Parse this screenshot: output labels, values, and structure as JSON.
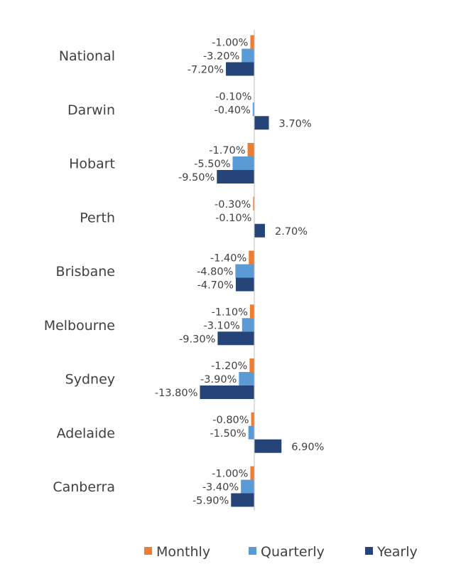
{
  "chart_data": {
    "type": "bar",
    "orientation": "horizontal",
    "title": "",
    "xlabel": "",
    "ylabel": "",
    "grid": false,
    "legend_position": "bottom",
    "categories": [
      "National",
      "Darwin",
      "Hobart",
      "Perth",
      "Brisbane",
      "Melbourne",
      "Sydney",
      "Adelaide",
      "Canberra"
    ],
    "series": [
      {
        "name": "Monthly",
        "color": "#ED7D31",
        "values": [
          -1.0,
          -0.1,
          -1.7,
          -0.3,
          -1.4,
          -1.1,
          -1.2,
          -0.8,
          -1.0
        ],
        "labels": [
          "-1.00%",
          "-0.10%",
          "-1.70%",
          "-0.30%",
          "-1.40%",
          "-1.10%",
          "-1.20%",
          "-0.80%",
          "-1.00%"
        ]
      },
      {
        "name": "Quarterly",
        "color": "#5B9BD5",
        "values": [
          -3.2,
          -0.4,
          -5.5,
          -0.1,
          -4.8,
          -3.1,
          -3.9,
          -1.5,
          -3.4
        ],
        "labels": [
          "-3.20%",
          "-0.40%",
          "-5.50%",
          "-0.10%",
          "-4.80%",
          "-3.10%",
          "-3.90%",
          "-1.50%",
          "-3.40%"
        ]
      },
      {
        "name": "Yearly",
        "color": "#264478",
        "values": [
          -7.2,
          3.7,
          -9.5,
          2.7,
          -4.7,
          -9.3,
          -13.8,
          6.9,
          -5.9
        ],
        "labels": [
          "-7.20%",
          "3.70%",
          "-9.50%",
          "2.70%",
          "-4.70%",
          "-9.30%",
          "-13.80%",
          "6.90%",
          "-5.90%"
        ]
      }
    ]
  }
}
